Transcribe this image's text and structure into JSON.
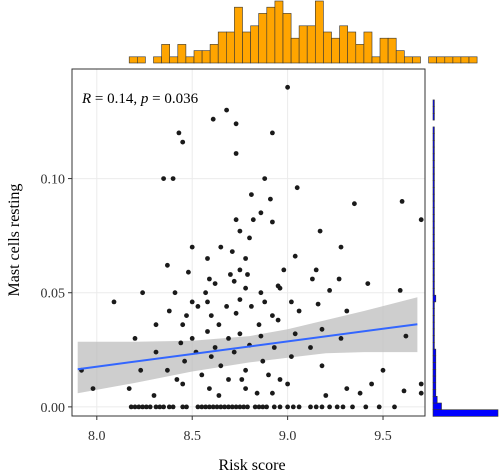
{
  "chart_data": {
    "type": "scatter",
    "xlabel": "Risk score",
    "ylabel": "Mast cells resting",
    "annotation": {
      "r_symbol": "R",
      "r_value": " = 0.14, ",
      "p_symbol": "p",
      "p_value": " = 0.036"
    },
    "xlim": [
      7.87,
      9.72
    ],
    "ylim": [
      -0.004,
      0.148
    ],
    "x_ticks": [
      {
        "value": 8.0,
        "label": "8.0"
      },
      {
        "value": 8.5,
        "label": "8.5"
      },
      {
        "value": 9.0,
        "label": "9.0"
      },
      {
        "value": 9.5,
        "label": "9.5"
      }
    ],
    "y_ticks": [
      {
        "value": 0.0,
        "label": "0.00"
      },
      {
        "value": 0.05,
        "label": "0.05"
      },
      {
        "value": 0.1,
        "label": "0.10"
      }
    ],
    "grid": true,
    "points": [
      [
        8.69,
        0.0
      ],
      [
        8.18,
        0.0
      ],
      [
        8.2,
        0.0
      ],
      [
        8.22,
        0.0
      ],
      [
        8.24,
        0.0
      ],
      [
        8.26,
        0.0
      ],
      [
        8.28,
        0.0
      ],
      [
        8.31,
        0.0
      ],
      [
        8.33,
        0.0
      ],
      [
        8.35,
        0.0
      ],
      [
        8.38,
        0.0
      ],
      [
        8.4,
        0.0
      ],
      [
        8.45,
        0.0
      ],
      [
        8.47,
        0.0
      ],
      [
        8.53,
        0.0
      ],
      [
        8.55,
        0.0
      ],
      [
        8.57,
        0.0
      ],
      [
        8.59,
        0.0
      ],
      [
        8.61,
        0.0
      ],
      [
        8.63,
        0.0
      ],
      [
        8.65,
        0.0
      ],
      [
        8.67,
        0.0
      ],
      [
        8.71,
        0.0
      ],
      [
        8.73,
        0.0
      ],
      [
        8.75,
        0.0
      ],
      [
        8.77,
        0.0
      ],
      [
        8.79,
        0.0
      ],
      [
        8.83,
        0.0
      ],
      [
        8.85,
        0.0
      ],
      [
        8.87,
        0.0
      ],
      [
        8.89,
        0.0
      ],
      [
        8.93,
        0.0
      ],
      [
        8.96,
        0.0
      ],
      [
        9.0,
        0.0
      ],
      [
        9.03,
        0.0
      ],
      [
        9.06,
        0.0
      ],
      [
        9.12,
        0.0
      ],
      [
        9.15,
        0.0
      ],
      [
        9.18,
        0.0
      ],
      [
        9.22,
        0.0
      ],
      [
        9.26,
        0.0
      ],
      [
        9.29,
        0.0
      ],
      [
        9.34,
        0.0
      ],
      [
        9.41,
        0.0
      ],
      [
        9.48,
        0.0
      ],
      [
        9.56,
        0.0
      ],
      [
        9.0,
        0.14
      ],
      [
        8.68,
        0.13
      ],
      [
        8.61,
        0.126
      ],
      [
        8.73,
        0.124
      ],
      [
        8.43,
        0.12
      ],
      [
        8.92,
        0.12
      ],
      [
        8.45,
        0.116
      ],
      [
        8.73,
        0.111
      ],
      [
        8.35,
        0.1
      ],
      [
        8.4,
        0.1
      ],
      [
        8.88,
        0.1
      ],
      [
        9.05,
        0.096
      ],
      [
        8.81,
        0.093
      ],
      [
        8.91,
        0.091
      ],
      [
        9.6,
        0.09
      ],
      [
        9.35,
        0.089
      ],
      [
        8.86,
        0.085
      ],
      [
        8.82,
        0.082
      ],
      [
        9.7,
        0.082
      ],
      [
        8.73,
        0.082
      ],
      [
        8.92,
        0.081
      ],
      [
        8.75,
        0.077
      ],
      [
        9.17,
        0.077
      ],
      [
        8.8,
        0.074
      ],
      [
        9.28,
        0.07
      ],
      [
        8.5,
        0.07
      ],
      [
        8.65,
        0.07
      ],
      [
        8.71,
        0.068
      ],
      [
        8.78,
        0.065
      ],
      [
        9.04,
        0.066
      ],
      [
        8.58,
        0.065
      ],
      [
        8.37,
        0.062
      ],
      [
        8.75,
        0.06
      ],
      [
        8.98,
        0.06
      ],
      [
        8.48,
        0.059
      ],
      [
        9.15,
        0.06
      ],
      [
        8.7,
        0.058
      ],
      [
        8.79,
        0.058
      ],
      [
        8.59,
        0.056
      ],
      [
        9.13,
        0.056
      ],
      [
        9.27,
        0.056
      ],
      [
        8.72,
        0.055
      ],
      [
        8.62,
        0.054
      ],
      [
        9.42,
        0.054
      ],
      [
        8.95,
        0.053
      ],
      [
        8.78,
        0.052
      ],
      [
        8.96,
        0.052
      ],
      [
        8.24,
        0.05
      ],
      [
        8.41,
        0.05
      ],
      [
        8.57,
        0.05
      ],
      [
        8.86,
        0.05
      ],
      [
        9.22,
        0.051
      ],
      [
        9.59,
        0.051
      ],
      [
        8.09,
        0.046
      ],
      [
        8.5,
        0.046
      ],
      [
        8.58,
        0.046
      ],
      [
        8.75,
        0.047
      ],
      [
        8.88,
        0.046
      ],
      [
        9.02,
        0.046
      ],
      [
        9.16,
        0.045
      ],
      [
        8.53,
        0.044
      ],
      [
        8.68,
        0.044
      ],
      [
        8.81,
        0.044
      ],
      [
        8.38,
        0.042
      ],
      [
        9.06,
        0.042
      ],
      [
        8.47,
        0.04
      ],
      [
        8.6,
        0.04
      ],
      [
        8.73,
        0.041
      ],
      [
        8.92,
        0.04
      ],
      [
        9.31,
        0.042
      ],
      [
        8.95,
        0.038
      ],
      [
        8.31,
        0.036
      ],
      [
        8.45,
        0.036
      ],
      [
        8.64,
        0.036
      ],
      [
        8.85,
        0.036
      ],
      [
        9.18,
        0.034
      ],
      [
        8.58,
        0.033
      ],
      [
        8.75,
        0.032
      ],
      [
        9.04,
        0.032
      ],
      [
        9.28,
        0.03
      ],
      [
        8.2,
        0.03
      ],
      [
        8.5,
        0.03
      ],
      [
        8.69,
        0.03
      ],
      [
        8.86,
        0.031
      ],
      [
        9.62,
        0.031
      ],
      [
        8.44,
        0.028
      ],
      [
        8.8,
        0.027
      ],
      [
        8.62,
        0.026
      ],
      [
        8.93,
        0.026
      ],
      [
        9.12,
        0.026
      ],
      [
        8.31,
        0.024
      ],
      [
        8.52,
        0.024
      ],
      [
        8.72,
        0.024
      ],
      [
        9.02,
        0.022
      ],
      [
        8.6,
        0.022
      ],
      [
        8.87,
        0.02
      ],
      [
        8.46,
        0.02
      ],
      [
        9.18,
        0.018
      ],
      [
        8.65,
        0.018
      ],
      [
        8.78,
        0.016
      ],
      [
        9.5,
        0.016
      ],
      [
        8.37,
        0.016
      ],
      [
        8.23,
        0.016
      ],
      [
        8.9,
        0.014
      ],
      [
        8.55,
        0.014
      ],
      [
        8.69,
        0.012
      ],
      [
        8.96,
        0.012
      ],
      [
        9.0,
        0.01
      ],
      [
        8.45,
        0.01
      ],
      [
        8.17,
        0.008
      ],
      [
        8.78,
        0.008
      ],
      [
        8.59,
        0.008
      ],
      [
        9.31,
        0.008
      ],
      [
        9.61,
        0.007
      ],
      [
        9.7,
        0.006
      ],
      [
        7.98,
        0.008
      ],
      [
        8.84,
        0.006
      ],
      [
        8.92,
        0.006
      ],
      [
        9.38,
        0.006
      ],
      [
        9.2,
        0.005
      ],
      [
        8.64,
        0.005
      ],
      [
        8.3,
        0.005
      ],
      [
        7.92,
        0.016
      ],
      [
        9.7,
        0.01
      ],
      [
        9.44,
        0.01
      ],
      [
        8.76,
        0.012
      ],
      [
        8.42,
        0.012
      ]
    ],
    "fit": {
      "x": [
        7.9,
        9.68
      ],
      "y": [
        0.0165,
        0.0362
      ]
    },
    "ci_band": {
      "x": [
        7.9,
        8.2,
        8.5,
        8.8,
        9.0,
        9.2,
        9.4,
        9.68
      ],
      "upper": [
        0.0285,
        0.0285,
        0.029,
        0.031,
        0.034,
        0.038,
        0.042,
        0.048
      ],
      "lower": [
        0.006,
        0.0105,
        0.0155,
        0.0195,
        0.0215,
        0.0235,
        0.024,
        0.024
      ]
    },
    "top_histogram": {
      "bin_start": 8.17,
      "bin_width": 0.0424,
      "counts": [
        1,
        1,
        0,
        1,
        3,
        1,
        3,
        1,
        2,
        2,
        3,
        5,
        5,
        9,
        5,
        6,
        8,
        9,
        10,
        8,
        4,
        6,
        6,
        10,
        5,
        4,
        6,
        5,
        3,
        5,
        1,
        4,
        4,
        2,
        1,
        1,
        0,
        1,
        1,
        1,
        1,
        1,
        1
      ],
      "color": "#FFA500"
    },
    "right_histogram": {
      "bin_start": -0.0042,
      "bin_width": 0.00295,
      "counts": [
        46,
        6,
        3,
        2,
        2,
        2,
        2,
        2,
        2,
        2,
        1,
        1,
        1,
        1,
        1,
        1,
        1,
        2,
        1,
        1,
        1,
        1,
        1,
        1,
        1,
        1,
        1,
        1,
        1,
        1,
        1,
        1,
        1,
        1,
        1,
        1,
        1,
        1,
        1,
        1,
        1,
        1,
        1,
        0,
        1,
        1,
        1,
        0
      ],
      "color": "#0000FF"
    },
    "colors": {
      "points": "#1a1a1a",
      "fit_line": "#3366FF",
      "ci_band": "#BEBEBE",
      "grid": "#EBEBEB",
      "frame": "#333333"
    }
  }
}
